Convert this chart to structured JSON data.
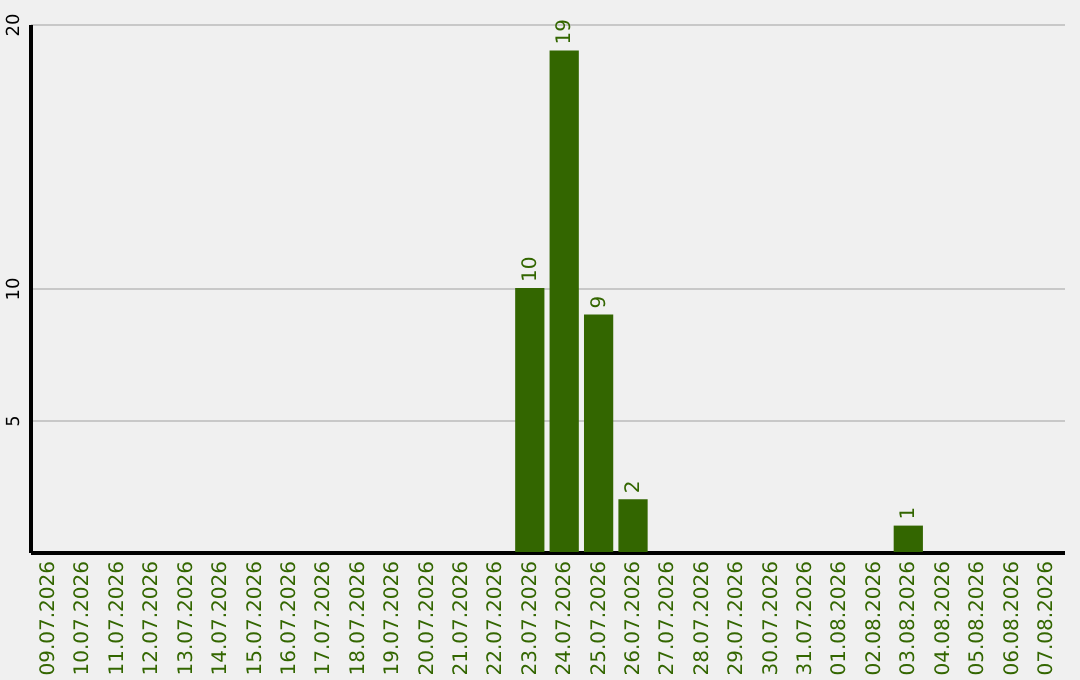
{
  "chart_data": {
    "type": "bar",
    "categories": [
      "09.07.2026",
      "10.07.2026",
      "11.07.2026",
      "12.07.2026",
      "13.07.2026",
      "14.07.2026",
      "15.07.2026",
      "16.07.2026",
      "17.07.2026",
      "18.07.2026",
      "19.07.2026",
      "20.07.2026",
      "21.07.2026",
      "22.07.2026",
      "23.07.2026",
      "24.07.2026",
      "25.07.2026",
      "26.07.2026",
      "27.07.2026",
      "28.07.2026",
      "29.07.2026",
      "30.07.2026",
      "31.07.2026",
      "01.08.2026",
      "02.08.2026",
      "03.08.2026",
      "04.08.2026",
      "05.08.2026",
      "06.08.2026",
      "07.08.2026"
    ],
    "values": [
      0,
      0,
      0,
      0,
      0,
      0,
      0,
      0,
      0,
      0,
      0,
      0,
      0,
      0,
      10,
      19,
      9,
      2,
      0,
      0,
      0,
      0,
      0,
      0,
      0,
      1,
      0,
      0,
      0,
      0
    ],
    "value_labels": [
      null,
      null,
      null,
      null,
      null,
      null,
      null,
      null,
      null,
      null,
      null,
      null,
      null,
      null,
      "10",
      "19",
      "9",
      "2",
      null,
      null,
      null,
      null,
      null,
      null,
      null,
      "1",
      null,
      null,
      null,
      null
    ],
    "color": "#336600",
    "ylim": [
      0,
      20
    ],
    "yticks": [
      5,
      10,
      20
    ],
    "grid": "y"
  }
}
